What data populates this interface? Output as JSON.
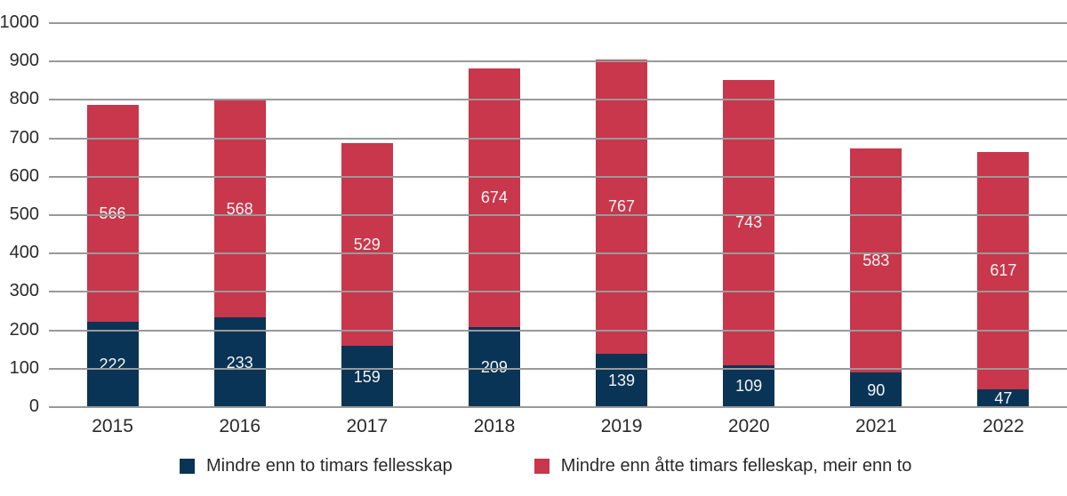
{
  "chart_data": {
    "type": "bar",
    "stacked": true,
    "title": "",
    "xlabel": "",
    "ylabel": "",
    "categories": [
      "2015",
      "2016",
      "2017",
      "2018",
      "2019",
      "2020",
      "2021",
      "2022"
    ],
    "series": [
      {
        "name": "Mindre enn to timars fellesskap",
        "color": "#0a3455",
        "values": [
          222,
          233,
          159,
          209,
          139,
          109,
          90,
          47
        ]
      },
      {
        "name": "Mindre enn åtte timars felleskap, meir enn to",
        "color": "#c8374b",
        "values": [
          566,
          568,
          529,
          674,
          767,
          743,
          583,
          617
        ]
      }
    ],
    "totals": [
      788,
      801,
      688,
      883,
      906,
      852,
      673,
      664
    ],
    "ylim": [
      0,
      1000
    ],
    "ytick_step": 100,
    "ytick_labels": [
      "0",
      "100",
      "200",
      "300",
      "400",
      "500",
      "600",
      "700",
      "800",
      "900",
      "1000"
    ],
    "grid": true,
    "gridline_color": "#999999",
    "value_label_color": "#f5f5f5",
    "axis_text_color": "#2a2a2a",
    "legend_position": "bottom",
    "value_labels_shown": true
  }
}
